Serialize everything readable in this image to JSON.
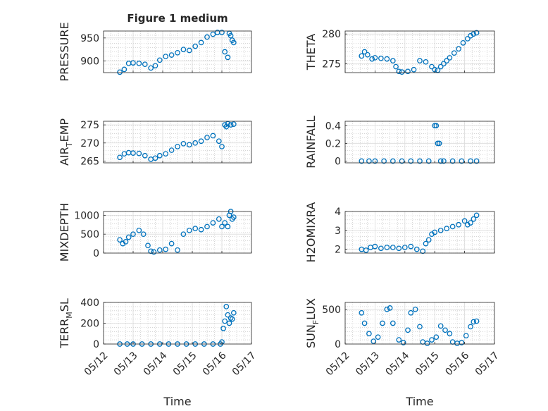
{
  "figure": {
    "title": "Figure 1 medium",
    "shared_xlabel": "Time",
    "x_ticks": [
      "05/12",
      "05/13",
      "05/14",
      "05/15",
      "05/16",
      "05/17"
    ],
    "marker_color": "#0072BD",
    "marker": "open-circle"
  },
  "chart_data": [
    {
      "type": "scatter",
      "id": "pressure",
      "title": "Figure 1 medium",
      "ylabel": "PRESSURE",
      "xlabel": "",
      "xlim": [
        0,
        5
      ],
      "ylim": [
        875,
        965
      ],
      "yticks": [
        900,
        950
      ],
      "x": [
        0.55,
        0.7,
        0.85,
        1.0,
        1.2,
        1.4,
        1.6,
        1.75,
        1.9,
        2.1,
        2.3,
        2.5,
        2.7,
        2.9,
        3.1,
        3.3,
        3.5,
        3.7,
        3.85,
        4.0,
        4.1,
        4.2,
        4.25,
        4.3,
        4.35,
        4.4
      ],
      "y": [
        876,
        882,
        895,
        896,
        895,
        893,
        885,
        890,
        902,
        910,
        913,
        918,
        925,
        923,
        932,
        940,
        952,
        958,
        962,
        962,
        920,
        908,
        960,
        955,
        945,
        940
      ]
    },
    {
      "type": "scatter",
      "id": "theta",
      "ylabel": "THETA",
      "xlabel": "",
      "xlim": [
        0,
        5
      ],
      "ylim": [
        273.5,
        280.5
      ],
      "yticks": [
        275,
        280
      ],
      "x": [
        0.55,
        0.65,
        0.75,
        0.9,
        1.0,
        1.2,
        1.4,
        1.6,
        1.7,
        1.8,
        1.9,
        2.1,
        2.3,
        2.5,
        2.7,
        2.9,
        3.0,
        3.1,
        3.2,
        3.3,
        3.4,
        3.5,
        3.65,
        3.8,
        3.95,
        4.1,
        4.2,
        4.3,
        4.4
      ],
      "y": [
        276.3,
        277.0,
        276.5,
        275.8,
        276.0,
        275.9,
        275.8,
        275.5,
        274.5,
        273.7,
        273.6,
        273.7,
        274.0,
        275.5,
        275.3,
        274.5,
        274.0,
        273.9,
        274.5,
        275.0,
        275.5,
        276.0,
        276.8,
        277.5,
        278.5,
        279.2,
        279.7,
        280.0,
        280.2
      ]
    },
    {
      "type": "scatter",
      "id": "air_temp",
      "ylabel": "AIR_TEMP",
      "xlabel": "",
      "xlim": [
        0,
        5
      ],
      "ylim": [
        264.5,
        276
      ],
      "yticks": [
        265,
        270,
        275
      ],
      "x": [
        0.55,
        0.7,
        0.85,
        1.0,
        1.2,
        1.4,
        1.6,
        1.75,
        1.9,
        2.1,
        2.3,
        2.5,
        2.7,
        2.9,
        3.1,
        3.3,
        3.5,
        3.7,
        3.9,
        4.0,
        4.1,
        4.15,
        4.2,
        4.3,
        4.4
      ],
      "y": [
        266,
        267,
        267.3,
        267.2,
        267.1,
        266.5,
        265.5,
        265.8,
        266.5,
        267.0,
        268.0,
        269.0,
        269.8,
        269.5,
        270.0,
        270.5,
        271.5,
        272.0,
        270.5,
        269.0,
        275.0,
        274.5,
        275.3,
        275.0,
        275.2
      ]
    },
    {
      "type": "scatter",
      "id": "rainfall",
      "ylabel": "RAINFALL",
      "xlabel": "",
      "xlim": [
        0,
        5
      ],
      "ylim": [
        -0.02,
        0.45
      ],
      "yticks": [
        0,
        0.2,
        0.4
      ],
      "x": [
        0.55,
        0.8,
        1.0,
        1.3,
        1.6,
        1.9,
        2.2,
        2.5,
        2.8,
        3.0,
        3.05,
        3.1,
        3.15,
        3.2,
        3.3,
        3.6,
        3.9,
        4.2,
        4.4
      ],
      "y": [
        0,
        0,
        0,
        0,
        0,
        0,
        0,
        0,
        0,
        0.4,
        0.4,
        0.2,
        0.2,
        0,
        0,
        0,
        0,
        0,
        0
      ]
    },
    {
      "type": "scatter",
      "id": "mixdepth",
      "ylabel": "MIXDEPTH",
      "xlabel": "",
      "xlim": [
        0,
        5
      ],
      "ylim": [
        0,
        1100
      ],
      "yticks": [
        0,
        500,
        1000
      ],
      "x": [
        0.55,
        0.65,
        0.75,
        0.85,
        1.0,
        1.2,
        1.35,
        1.5,
        1.6,
        1.7,
        1.9,
        2.1,
        2.3,
        2.5,
        2.7,
        2.9,
        3.1,
        3.3,
        3.5,
        3.7,
        3.9,
        4.0,
        4.1,
        4.2,
        4.25,
        4.3,
        4.35,
        4.4
      ],
      "y": [
        350,
        250,
        300,
        420,
        500,
        600,
        500,
        200,
        50,
        30,
        80,
        100,
        250,
        80,
        500,
        600,
        650,
        620,
        700,
        800,
        900,
        700,
        800,
        700,
        1000,
        1100,
        900,
        950
      ]
    },
    {
      "type": "scatter",
      "id": "h2omixra",
      "ylabel": "H2OMIXRA",
      "xlabel": "",
      "xlim": [
        0,
        5
      ],
      "ylim": [
        1.8,
        4.0
      ],
      "yticks": [
        2,
        3,
        4
      ],
      "x": [
        0.55,
        0.7,
        0.85,
        1.0,
        1.2,
        1.4,
        1.6,
        1.8,
        2.0,
        2.2,
        2.4,
        2.6,
        2.7,
        2.8,
        2.9,
        3.0,
        3.2,
        3.4,
        3.6,
        3.8,
        4.0,
        4.1,
        4.2,
        4.3,
        4.4
      ],
      "y": [
        2.0,
        1.95,
        2.1,
        2.15,
        2.05,
        2.1,
        2.1,
        2.05,
        2.1,
        2.15,
        2.0,
        1.9,
        2.3,
        2.5,
        2.8,
        2.9,
        3.0,
        3.1,
        3.2,
        3.3,
        3.5,
        3.3,
        3.4,
        3.6,
        3.8
      ]
    },
    {
      "type": "scatter",
      "id": "terr_msl",
      "ylabel": "TERR_MSL",
      "xlabel": "",
      "xlim": [
        0,
        5
      ],
      "ylim": [
        0,
        400
      ],
      "yticks": [
        0,
        200,
        400
      ],
      "x": [
        0.55,
        0.8,
        1.0,
        1.3,
        1.6,
        1.9,
        2.2,
        2.5,
        2.8,
        3.1,
        3.4,
        3.7,
        3.95,
        4.0,
        4.05,
        4.1,
        4.15,
        4.2,
        4.25,
        4.3,
        4.35,
        4.4
      ],
      "y": [
        0,
        0,
        0,
        0,
        0,
        0,
        0,
        0,
        0,
        0,
        0,
        0,
        0,
        20,
        150,
        220,
        360,
        280,
        200,
        250,
        240,
        300
      ]
    },
    {
      "type": "scatter",
      "id": "sun_flux",
      "ylabel": "SUN_FLUX",
      "xlabel": "",
      "xlim": [
        0,
        5
      ],
      "ylim": [
        0,
        600
      ],
      "yticks": [
        0,
        500
      ],
      "x": [
        0.55,
        0.65,
        0.8,
        0.95,
        1.1,
        1.25,
        1.4,
        1.5,
        1.6,
        1.8,
        1.95,
        2.1,
        2.2,
        2.35,
        2.5,
        2.6,
        2.75,
        2.9,
        3.05,
        3.2,
        3.35,
        3.5,
        3.6,
        3.75,
        3.9,
        4.05,
        4.2,
        4.3,
        4.4
      ],
      "y": [
        450,
        300,
        150,
        40,
        100,
        300,
        500,
        520,
        300,
        60,
        20,
        200,
        450,
        500,
        250,
        30,
        10,
        60,
        100,
        260,
        200,
        150,
        30,
        10,
        20,
        120,
        250,
        320,
        330
      ]
    }
  ]
}
